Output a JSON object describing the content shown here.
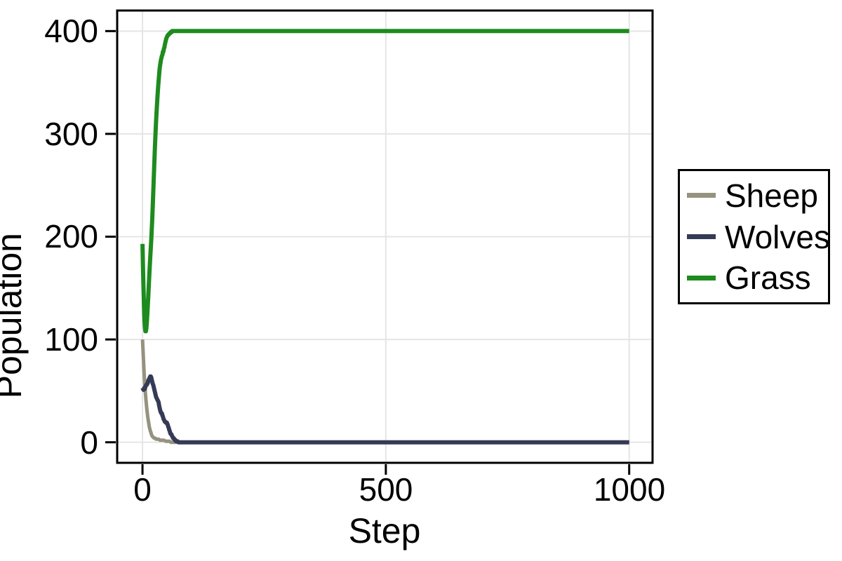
{
  "chart_data": {
    "type": "line",
    "title": "",
    "xlabel": "Step",
    "ylabel": "Population",
    "xlim": [
      -52,
      1048
    ],
    "ylim": [
      -20,
      420
    ],
    "xticks": [
      0,
      500,
      1000
    ],
    "yticks": [
      0,
      100,
      200,
      300,
      400
    ],
    "xtick_labels": [
      "0",
      "500",
      "1000"
    ],
    "ytick_labels": [
      "0",
      "100",
      "200",
      "300",
      "400"
    ],
    "grid": true,
    "legend_position": "outside-right",
    "axis_color": "#000000",
    "grid_color": "#e5e5e5",
    "background": "#ffffff",
    "series": [
      {
        "name": "Sheep",
        "color": "#95927e",
        "points": [
          [
            0,
            100
          ],
          [
            1,
            90
          ],
          [
            2,
            80
          ],
          [
            3,
            70
          ],
          [
            4,
            62
          ],
          [
            5,
            55
          ],
          [
            6,
            48
          ],
          [
            7,
            42
          ],
          [
            8,
            37
          ],
          [
            9,
            32
          ],
          [
            10,
            28
          ],
          [
            11,
            24
          ],
          [
            12,
            21
          ],
          [
            13,
            18
          ],
          [
            14,
            15
          ],
          [
            15,
            13
          ],
          [
            16,
            11
          ],
          [
            17,
            10
          ],
          [
            18,
            8
          ],
          [
            19,
            7
          ],
          [
            20,
            6
          ],
          [
            22,
            5
          ],
          [
            24,
            4
          ],
          [
            26,
            4
          ],
          [
            28,
            3
          ],
          [
            30,
            3
          ],
          [
            33,
            3
          ],
          [
            36,
            2
          ],
          [
            40,
            2
          ],
          [
            44,
            2
          ],
          [
            48,
            1
          ],
          [
            52,
            1
          ],
          [
            56,
            1
          ],
          [
            58,
            0
          ],
          [
            70,
            0
          ],
          [
            200,
            0
          ],
          [
            600,
            0
          ],
          [
            1000,
            0
          ]
        ]
      },
      {
        "name": "Wolves",
        "color": "#353a56",
        "points": [
          [
            0,
            53
          ],
          [
            1,
            52
          ],
          [
            2,
            51
          ],
          [
            3,
            52
          ],
          [
            4,
            53
          ],
          [
            5,
            52
          ],
          [
            6,
            54
          ],
          [
            7,
            55
          ],
          [
            8,
            56
          ],
          [
            9,
            56
          ],
          [
            10,
            57
          ],
          [
            11,
            58
          ],
          [
            12,
            60
          ],
          [
            13,
            61
          ],
          [
            14,
            62
          ],
          [
            15,
            63
          ],
          [
            16,
            64
          ],
          [
            17,
            64
          ],
          [
            18,
            63
          ],
          [
            19,
            61
          ],
          [
            20,
            59
          ],
          [
            21,
            57
          ],
          [
            22,
            56
          ],
          [
            23,
            54
          ],
          [
            24,
            52
          ],
          [
            25,
            50
          ],
          [
            26,
            48
          ],
          [
            27,
            46
          ],
          [
            28,
            44
          ],
          [
            29,
            43
          ],
          [
            30,
            42
          ],
          [
            31,
            41
          ],
          [
            32,
            40
          ],
          [
            33,
            39
          ],
          [
            34,
            36
          ],
          [
            35,
            34
          ],
          [
            36,
            32
          ],
          [
            37,
            30
          ],
          [
            38,
            29
          ],
          [
            39,
            28
          ],
          [
            40,
            28
          ],
          [
            41,
            26
          ],
          [
            42,
            25
          ],
          [
            43,
            23
          ],
          [
            44,
            22
          ],
          [
            45,
            21
          ],
          [
            46,
            20
          ],
          [
            47,
            20
          ],
          [
            48,
            19
          ],
          [
            49,
            19
          ],
          [
            50,
            19
          ],
          [
            51,
            18
          ],
          [
            52,
            17
          ],
          [
            53,
            15
          ],
          [
            54,
            14
          ],
          [
            55,
            12
          ],
          [
            56,
            11
          ],
          [
            57,
            9
          ],
          [
            58,
            8
          ],
          [
            59,
            8
          ],
          [
            60,
            7
          ],
          [
            61,
            6
          ],
          [
            62,
            5
          ],
          [
            63,
            4
          ],
          [
            64,
            4
          ],
          [
            65,
            3
          ],
          [
            66,
            3
          ],
          [
            67,
            2
          ],
          [
            68,
            2
          ],
          [
            69,
            1
          ],
          [
            70,
            1
          ],
          [
            72,
            1
          ],
          [
            74,
            0
          ],
          [
            80,
            0
          ],
          [
            200,
            0
          ],
          [
            600,
            0
          ],
          [
            1000,
            0
          ]
        ]
      },
      {
        "name": "Grass",
        "color": "#1e8b1e",
        "points": [
          [
            0,
            193
          ],
          [
            1,
            170
          ],
          [
            2,
            150
          ],
          [
            3,
            133
          ],
          [
            4,
            120
          ],
          [
            5,
            112
          ],
          [
            6,
            108
          ],
          [
            7,
            108
          ],
          [
            8,
            111
          ],
          [
            9,
            117
          ],
          [
            10,
            125
          ],
          [
            11,
            134
          ],
          [
            12,
            143
          ],
          [
            13,
            153
          ],
          [
            14,
            163
          ],
          [
            15,
            172
          ],
          [
            16,
            181
          ],
          [
            17,
            189
          ],
          [
            18,
            197
          ],
          [
            19,
            206
          ],
          [
            20,
            216
          ],
          [
            21,
            228
          ],
          [
            22,
            241
          ],
          [
            23,
            254
          ],
          [
            24,
            267
          ],
          [
            25,
            280
          ],
          [
            26,
            292
          ],
          [
            27,
            303
          ],
          [
            28,
            313
          ],
          [
            29,
            322
          ],
          [
            30,
            330
          ],
          [
            31,
            338
          ],
          [
            32,
            345
          ],
          [
            33,
            351
          ],
          [
            34,
            357
          ],
          [
            35,
            362
          ],
          [
            36,
            366
          ],
          [
            37,
            369
          ],
          [
            38,
            372
          ],
          [
            39,
            374
          ],
          [
            40,
            376
          ],
          [
            41,
            377
          ],
          [
            42,
            380
          ],
          [
            43,
            380
          ],
          [
            44,
            383
          ],
          [
            45,
            384
          ],
          [
            46,
            387
          ],
          [
            47,
            389
          ],
          [
            48,
            391
          ],
          [
            49,
            393
          ],
          [
            50,
            394
          ],
          [
            51,
            395
          ],
          [
            52,
            396
          ],
          [
            53,
            396
          ],
          [
            54,
            397
          ],
          [
            55,
            397
          ],
          [
            56,
            398
          ],
          [
            57,
            398
          ],
          [
            58,
            399
          ],
          [
            59,
            399
          ],
          [
            60,
            399
          ],
          [
            61,
            400
          ],
          [
            62,
            400
          ],
          [
            66,
            400
          ],
          [
            70,
            400
          ],
          [
            200,
            400
          ],
          [
            600,
            400
          ],
          [
            1000,
            400
          ]
        ]
      }
    ]
  }
}
